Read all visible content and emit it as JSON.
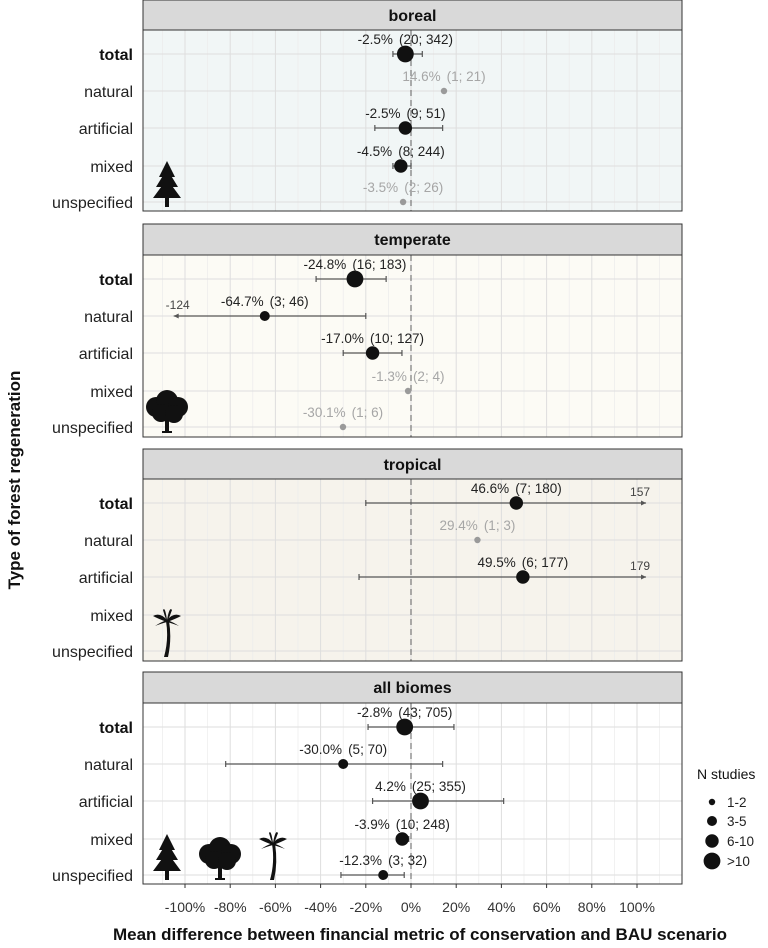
{
  "chart_data": {
    "type": "scatter",
    "subtype": "faceted forest plot (point estimate with interval)",
    "xlabel": "Mean difference between financial metric of conservation and BAU scenario",
    "ylabel": "Type of forest regeneration",
    "xlim": [
      -110,
      118
    ],
    "x_ticks": [
      -100,
      -80,
      -60,
      -40,
      -20,
      0,
      20,
      40,
      60,
      80,
      100
    ],
    "x_tick_labels": [
      "-100%",
      "-80%",
      "-60%",
      "-40%",
      "-20%",
      "0%",
      "20%",
      "40%",
      "60%",
      "80%",
      "100%"
    ],
    "categories": [
      "total",
      "natural",
      "artificial",
      "mixed",
      "unspecified"
    ],
    "reference_line": 0,
    "grid": true,
    "legend": {
      "title": "N studies",
      "position": "right",
      "entries": [
        "1-2",
        "3-5",
        "6-10",
        ">10"
      ]
    },
    "facets": [
      {
        "title": "boreal",
        "icon": "conifer-tree-icon",
        "bg": "#f1f6f6",
        "points": [
          {
            "category": "total",
            "x": -2.5,
            "lo": -8,
            "hi": 5,
            "label": "-2.5%",
            "n": "(20; 342)",
            "size": ">10",
            "faded": false
          },
          {
            "category": "natural",
            "x": 14.6,
            "label": "14.6%",
            "n": "(1; 21)",
            "size": "1-2",
            "faded": true
          },
          {
            "category": "artificial",
            "x": -2.5,
            "lo": -16,
            "hi": 14,
            "label": "-2.5%",
            "n": "(9; 51)",
            "size": "6-10",
            "faded": false
          },
          {
            "category": "mixed",
            "x": -4.5,
            "lo": -8,
            "hi": 0,
            "label": "-4.5%",
            "n": "(8; 244)",
            "size": "6-10",
            "faded": false
          },
          {
            "category": "unspecified",
            "x": -3.5,
            "label": "-3.5%",
            "n": "(2; 26)",
            "size": "1-2",
            "faded": true
          }
        ]
      },
      {
        "title": "temperate",
        "icon": "broadleaf-tree-icon",
        "bg": "#fcfbf5",
        "points": [
          {
            "category": "total",
            "x": -24.8,
            "lo": -42,
            "hi": -11,
            "label": "-24.8%",
            "n": "(16; 183)",
            "size": ">10",
            "faded": false
          },
          {
            "category": "natural",
            "x": -64.7,
            "lo": -105,
            "hi": -20,
            "label": "-64.7%",
            "n": "(3; 46)",
            "size": "3-5",
            "faded": false,
            "clip_low": "-124"
          },
          {
            "category": "artificial",
            "x": -17.0,
            "lo": -30,
            "hi": -4,
            "label": "-17.0%",
            "n": "(10; 127)",
            "size": "6-10",
            "faded": false
          },
          {
            "category": "mixed",
            "x": -1.3,
            "label": "-1.3%",
            "n": "(2; 4)",
            "size": "1-2",
            "faded": true
          },
          {
            "category": "unspecified",
            "x": -30.1,
            "label": "-30.1%",
            "n": "(1; 6)",
            "size": "1-2",
            "faded": true
          }
        ]
      },
      {
        "title": "tropical",
        "icon": "palm-tree-icon",
        "bg": "#f6f3ec",
        "points": [
          {
            "category": "total",
            "x": 46.6,
            "lo": -20,
            "hi": 104,
            "label": "46.6%",
            "n": "(7; 180)",
            "size": "6-10",
            "faded": false,
            "clip_high": "157"
          },
          {
            "category": "natural",
            "x": 29.4,
            "label": "29.4%",
            "n": "(1; 3)",
            "size": "1-2",
            "faded": true
          },
          {
            "category": "artificial",
            "x": 49.5,
            "lo": -23,
            "hi": 104,
            "label": "49.5%",
            "n": "(6; 177)",
            "size": "6-10",
            "faded": false,
            "clip_high": "179"
          }
        ]
      },
      {
        "title": "all biomes",
        "icon": "all-biomes-icons",
        "bg": "#ffffff",
        "points": [
          {
            "category": "total",
            "x": -2.8,
            "lo": -19,
            "hi": 19,
            "label": "-2.8%",
            "n": "(43; 705)",
            "size": ">10",
            "faded": false
          },
          {
            "category": "natural",
            "x": -30.0,
            "lo": -82,
            "hi": 14,
            "label": "-30.0%",
            "n": "(5; 70)",
            "size": "3-5",
            "faded": false
          },
          {
            "category": "artificial",
            "x": 4.2,
            "lo": -17,
            "hi": 41,
            "label": "4.2%",
            "n": "(25; 355)",
            "size": ">10",
            "faded": false
          },
          {
            "category": "mixed",
            "x": -3.9,
            "lo": -6,
            "hi": -1,
            "label": "-3.9%",
            "n": "(10; 248)",
            "size": "6-10",
            "faded": false
          },
          {
            "category": "unspecified",
            "x": -12.3,
            "lo": -31,
            "hi": -3,
            "label": "-12.3%",
            "n": "(3; 32)",
            "size": "3-5",
            "faded": false
          }
        ]
      }
    ]
  }
}
